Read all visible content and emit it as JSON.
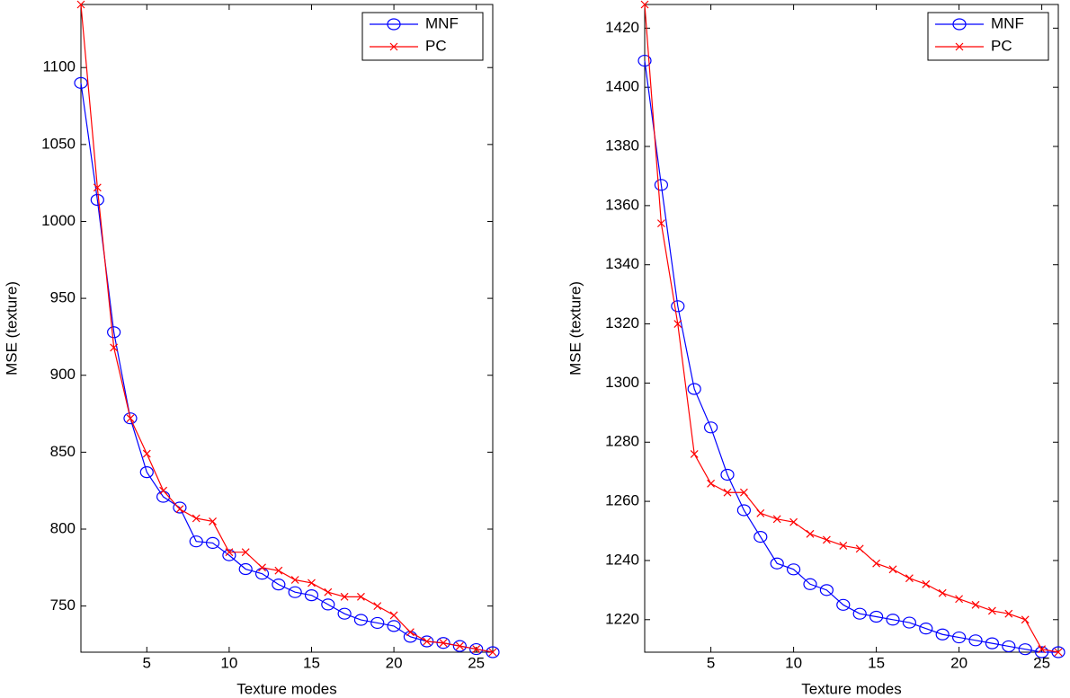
{
  "chart_data": [
    {
      "type": "line",
      "xlabel": "Texture modes",
      "ylabel": "MSE (texture)",
      "x": [
        1,
        2,
        3,
        4,
        5,
        6,
        7,
        8,
        9,
        10,
        11,
        12,
        13,
        14,
        15,
        16,
        17,
        18,
        19,
        20,
        21,
        22,
        23,
        24,
        25,
        26
      ],
      "xlim": [
        1,
        26
      ],
      "xticks": [
        5,
        10,
        15,
        20,
        25
      ],
      "ylim": [
        720,
        1141
      ],
      "yticks": [
        750,
        800,
        850,
        900,
        950,
        1000,
        1050,
        1100
      ],
      "legend": "upper right",
      "series": [
        {
          "name": "MNF",
          "color": "#0000ff",
          "marker": "o",
          "values": [
            1090,
            1014,
            928,
            872,
            837,
            821,
            814,
            792,
            791,
            783,
            774,
            771,
            764,
            759,
            757,
            751,
            745,
            741,
            739,
            737,
            730,
            727,
            726,
            724,
            722,
            720
          ]
        },
        {
          "name": "PC",
          "color": "#ff0000",
          "marker": "x",
          "values": [
            1141,
            1022,
            918,
            872,
            849,
            825,
            813,
            807,
            805,
            785,
            785,
            775,
            773,
            767,
            765,
            759,
            756,
            756,
            750,
            744,
            733,
            727,
            726,
            724,
            722,
            720
          ]
        }
      ]
    },
    {
      "type": "line",
      "xlabel": "Texture modes",
      "ylabel": "MSE (texture)",
      "x": [
        1,
        2,
        3,
        4,
        5,
        6,
        7,
        8,
        9,
        10,
        11,
        12,
        13,
        14,
        15,
        16,
        17,
        18,
        19,
        20,
        21,
        22,
        23,
        24,
        25,
        26
      ],
      "xlim": [
        1,
        26
      ],
      "xticks": [
        5,
        10,
        15,
        20,
        25
      ],
      "ylim": [
        1209,
        1428
      ],
      "yticks": [
        1220,
        1240,
        1260,
        1280,
        1300,
        1320,
        1340,
        1360,
        1380,
        1400,
        1420
      ],
      "legend": "upper right",
      "series": [
        {
          "name": "MNF",
          "color": "#0000ff",
          "marker": "o",
          "values": [
            1409,
            1367,
            1326,
            1298,
            1285,
            1269,
            1257,
            1248,
            1239,
            1237,
            1232,
            1230,
            1225,
            1222,
            1221,
            1220,
            1219,
            1217,
            1215,
            1214,
            1213,
            1212,
            1211,
            1210,
            1209,
            1209
          ]
        },
        {
          "name": "PC",
          "color": "#ff0000",
          "marker": "x",
          "values": [
            1428,
            1354,
            1320,
            1276,
            1266,
            1263,
            1263,
            1256,
            1254,
            1253,
            1249,
            1247,
            1245,
            1244,
            1239,
            1237,
            1234,
            1232,
            1229,
            1227,
            1225,
            1223,
            1222,
            1220,
            1210,
            1209
          ]
        }
      ]
    }
  ]
}
